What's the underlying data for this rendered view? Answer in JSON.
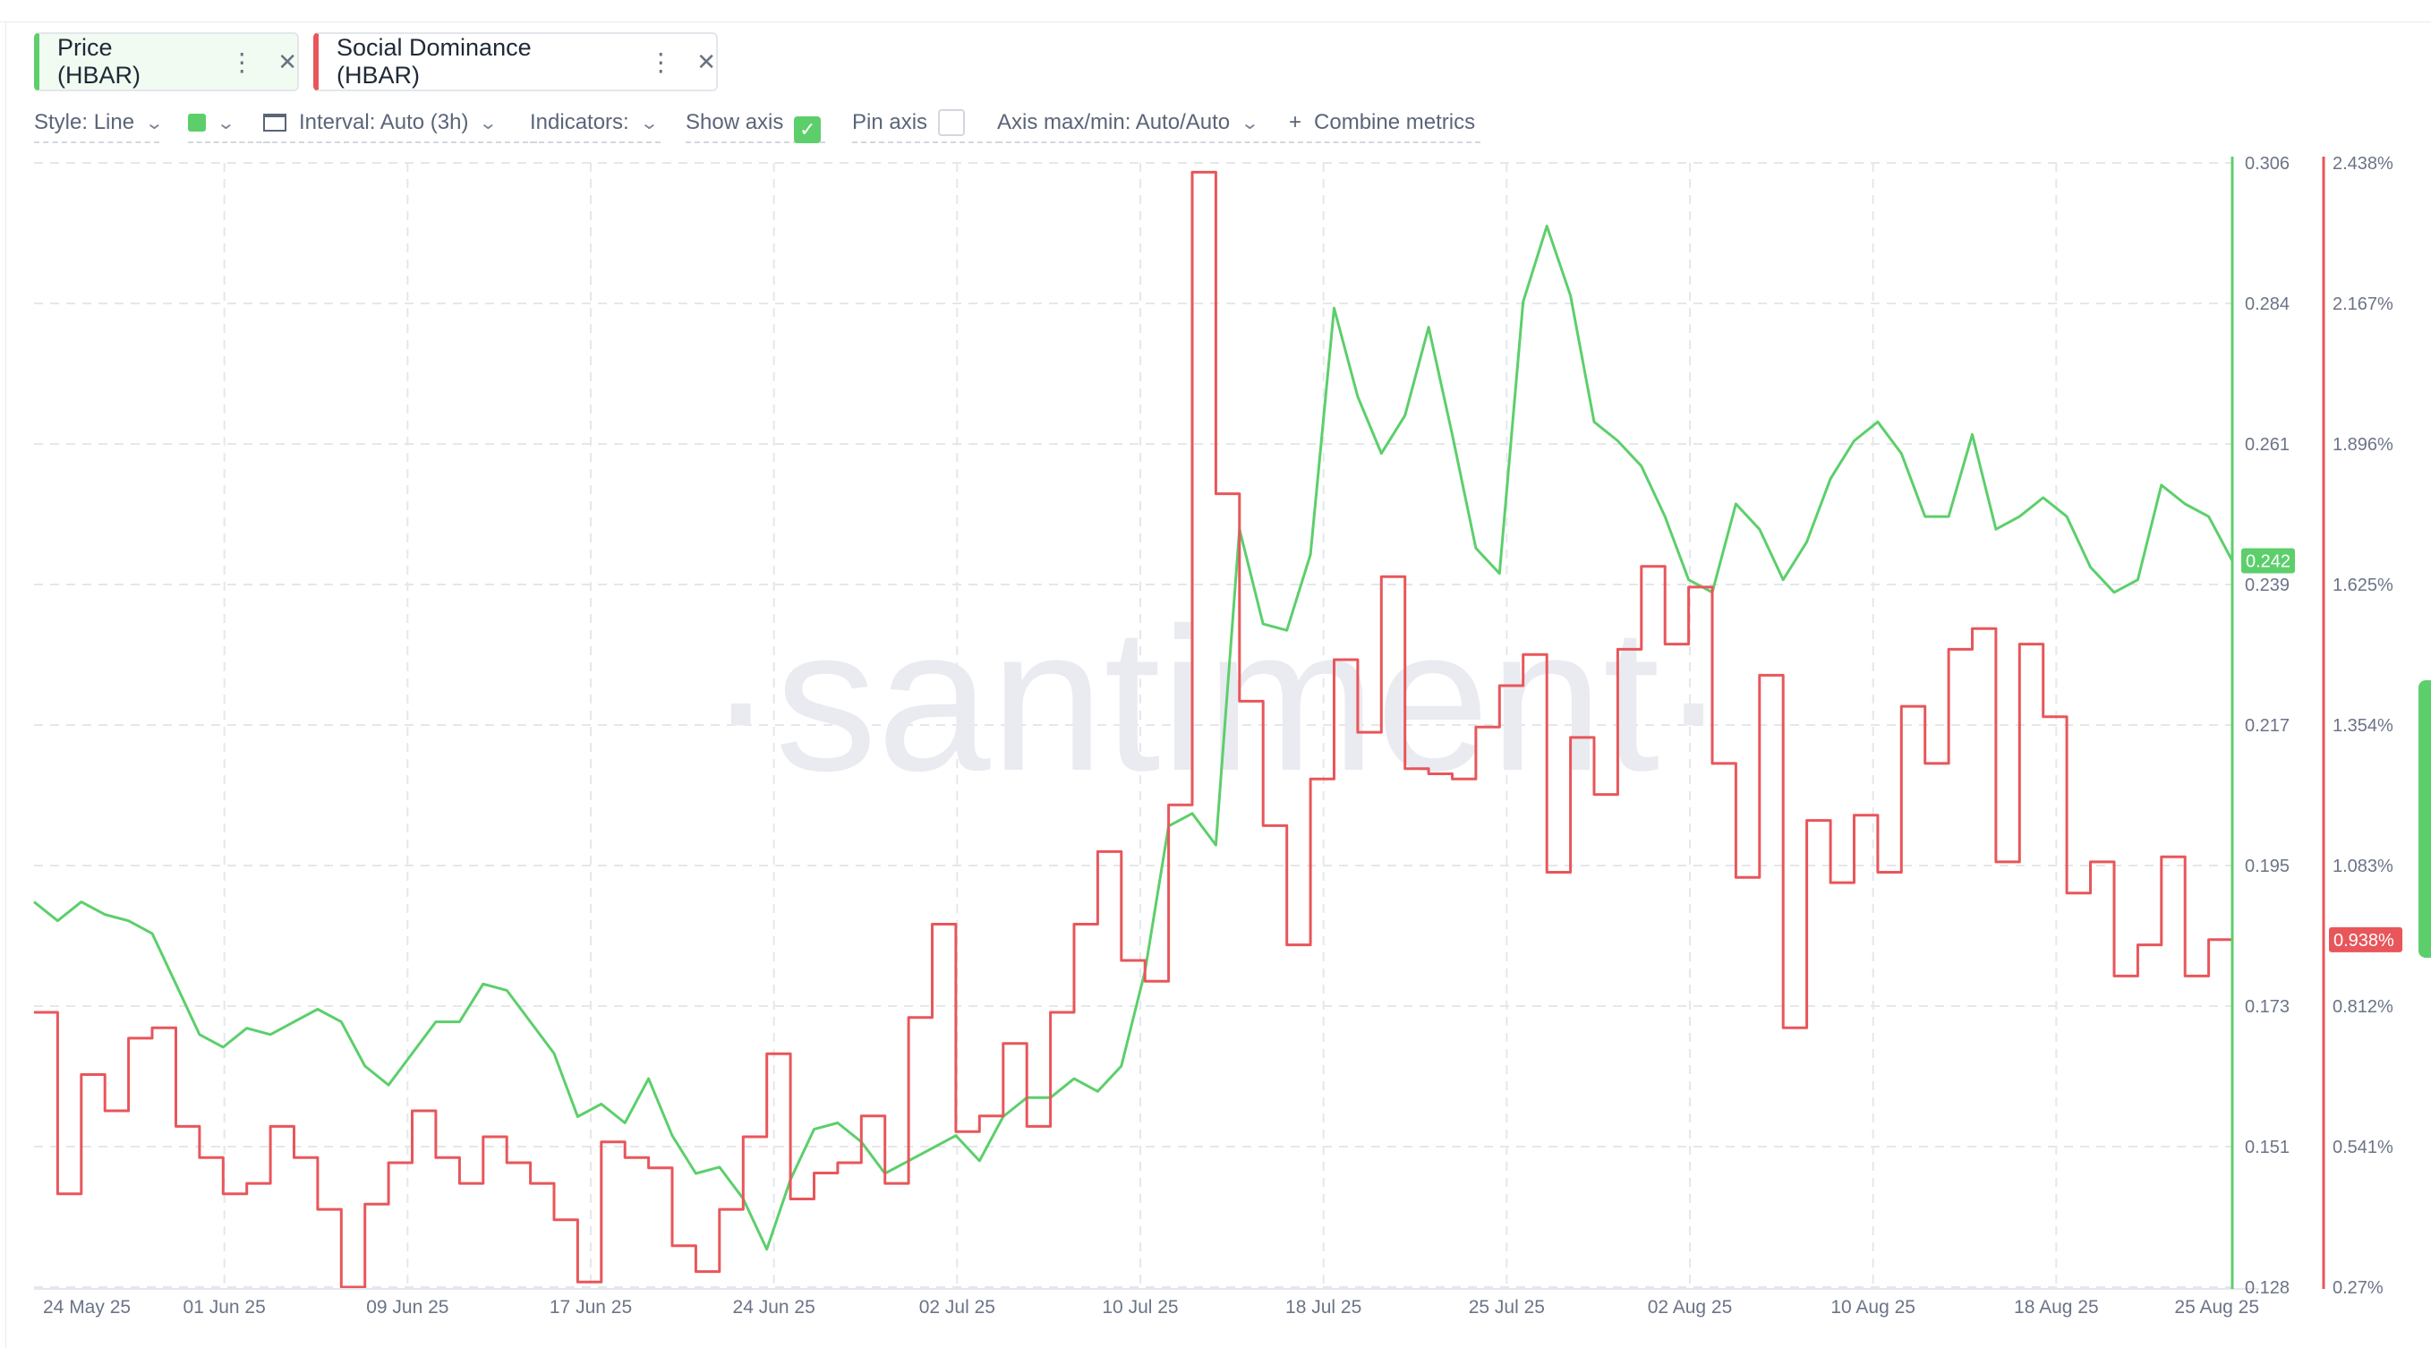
{
  "metrics": [
    {
      "label": "Price (HBAR)",
      "color": "#5ccf6b",
      "menu_icon": "more-vertical-icon",
      "close_icon": "close-icon"
    },
    {
      "label": "Social Dominance (HBAR)",
      "color": "#e8565a",
      "menu_icon": "more-vertical-icon",
      "close_icon": "close-icon"
    }
  ],
  "toolbar": {
    "style": "Style: Line",
    "interval": "Interval: Auto (3h)",
    "indicators": "Indicators:",
    "show_axis": "Show axis",
    "show_axis_checked": true,
    "pin_axis": "Pin axis",
    "pin_axis_checked": false,
    "axis_minmax": "Axis max/min: Auto/Auto",
    "combine": "Combine metrics"
  },
  "watermark": "·santiment·",
  "chart_data": {
    "type": "line",
    "x_ticks": [
      "24 May 25",
      "01 Jun 25",
      "09 Jun 25",
      "17 Jun 25",
      "24 Jun 25",
      "02 Jul 25",
      "10 Jul 25",
      "18 Jul 25",
      "25 Jul 25",
      "02 Aug 25",
      "10 Aug 25",
      "18 Aug 25",
      "25 Aug 25"
    ],
    "x_range": [
      "2025-05-24",
      "2025-08-25"
    ],
    "grid": true,
    "series": [
      {
        "name": "Price (HBAR)",
        "axis": "right-1",
        "color": "#5ccf6b",
        "current_value": "0.242",
        "y_ticks": [
          "0.306",
          "0.284",
          "0.261",
          "0.239",
          "0.217",
          "0.195",
          "0.173",
          "0.151",
          "0.128"
        ],
        "ylim": [
          0.128,
          0.306
        ],
        "points": [
          [
            "2025-05-24",
            0.189
          ],
          [
            "2025-05-25",
            0.186
          ],
          [
            "2025-05-26",
            0.189
          ],
          [
            "2025-05-27",
            0.187
          ],
          [
            "2025-05-28",
            0.186
          ],
          [
            "2025-05-29",
            0.184
          ],
          [
            "2025-05-30",
            0.176
          ],
          [
            "2025-05-31",
            0.168
          ],
          [
            "2025-06-01",
            0.166
          ],
          [
            "2025-06-02",
            0.169
          ],
          [
            "2025-06-03",
            0.168
          ],
          [
            "2025-06-04",
            0.17
          ],
          [
            "2025-06-05",
            0.172
          ],
          [
            "2025-06-06",
            0.17
          ],
          [
            "2025-06-07",
            0.163
          ],
          [
            "2025-06-08",
            0.16
          ],
          [
            "2025-06-09",
            0.165
          ],
          [
            "2025-06-10",
            0.17
          ],
          [
            "2025-06-11",
            0.17
          ],
          [
            "2025-06-12",
            0.176
          ],
          [
            "2025-06-13",
            0.175
          ],
          [
            "2025-06-14",
            0.17
          ],
          [
            "2025-06-15",
            0.165
          ],
          [
            "2025-06-16",
            0.155
          ],
          [
            "2025-06-17",
            0.157
          ],
          [
            "2025-06-18",
            0.154
          ],
          [
            "2025-06-19",
            0.161
          ],
          [
            "2025-06-20",
            0.152
          ],
          [
            "2025-06-21",
            0.146
          ],
          [
            "2025-06-22",
            0.147
          ],
          [
            "2025-06-23",
            0.142
          ],
          [
            "2025-06-24",
            0.134
          ],
          [
            "2025-06-25",
            0.145
          ],
          [
            "2025-06-26",
            0.153
          ],
          [
            "2025-06-27",
            0.154
          ],
          [
            "2025-06-28",
            0.151
          ],
          [
            "2025-06-29",
            0.146
          ],
          [
            "2025-06-30",
            0.148
          ],
          [
            "2025-07-01",
            0.15
          ],
          [
            "2025-07-02",
            0.152
          ],
          [
            "2025-07-03",
            0.148
          ],
          [
            "2025-07-04",
            0.155
          ],
          [
            "2025-07-05",
            0.158
          ],
          [
            "2025-07-06",
            0.158
          ],
          [
            "2025-07-07",
            0.161
          ],
          [
            "2025-07-08",
            0.159
          ],
          [
            "2025-07-09",
            0.163
          ],
          [
            "2025-07-10",
            0.178
          ],
          [
            "2025-07-11",
            0.201
          ],
          [
            "2025-07-12",
            0.203
          ],
          [
            "2025-07-13",
            0.198
          ],
          [
            "2025-07-14",
            0.248
          ],
          [
            "2025-07-15",
            0.233
          ],
          [
            "2025-07-16",
            0.232
          ],
          [
            "2025-07-17",
            0.244
          ],
          [
            "2025-07-18",
            0.283
          ],
          [
            "2025-07-19",
            0.269
          ],
          [
            "2025-07-20",
            0.26
          ],
          [
            "2025-07-21",
            0.266
          ],
          [
            "2025-07-22",
            0.28
          ],
          [
            "2025-07-23",
            0.263
          ],
          [
            "2025-07-24",
            0.245
          ],
          [
            "2025-07-25",
            0.241
          ],
          [
            "2025-07-26",
            0.284
          ],
          [
            "2025-07-27",
            0.296
          ],
          [
            "2025-07-28",
            0.285
          ],
          [
            "2025-07-29",
            0.265
          ],
          [
            "2025-07-30",
            0.262
          ],
          [
            "2025-07-31",
            0.258
          ],
          [
            "2025-08-01",
            0.25
          ],
          [
            "2025-08-02",
            0.24
          ],
          [
            "2025-08-03",
            0.238
          ],
          [
            "2025-08-04",
            0.252
          ],
          [
            "2025-08-05",
            0.248
          ],
          [
            "2025-08-06",
            0.24
          ],
          [
            "2025-08-07",
            0.246
          ],
          [
            "2025-08-08",
            0.256
          ],
          [
            "2025-08-09",
            0.262
          ],
          [
            "2025-08-10",
            0.265
          ],
          [
            "2025-08-11",
            0.26
          ],
          [
            "2025-08-12",
            0.25
          ],
          [
            "2025-08-13",
            0.25
          ],
          [
            "2025-08-14",
            0.263
          ],
          [
            "2025-08-15",
            0.248
          ],
          [
            "2025-08-16",
            0.25
          ],
          [
            "2025-08-17",
            0.253
          ],
          [
            "2025-08-18",
            0.25
          ],
          [
            "2025-08-19",
            0.242
          ],
          [
            "2025-08-20",
            0.238
          ],
          [
            "2025-08-21",
            0.24
          ],
          [
            "2025-08-22",
            0.255
          ],
          [
            "2025-08-23",
            0.252
          ],
          [
            "2025-08-24",
            0.25
          ],
          [
            "2025-08-25",
            0.243
          ]
        ]
      },
      {
        "name": "Social Dominance (HBAR)",
        "axis": "right-2",
        "color": "#e8565a",
        "current_value": "0.938%",
        "y_ticks": [
          "2.438%",
          "2.167%",
          "1.896%",
          "1.625%",
          "1.354%",
          "1.083%",
          "0.812%",
          "0.541%",
          "0.27%"
        ],
        "ylim": [
          0.27,
          2.438
        ],
        "points": [
          [
            "2025-05-24",
            0.8
          ],
          [
            "2025-05-25",
            0.45
          ],
          [
            "2025-05-26",
            0.68
          ],
          [
            "2025-05-27",
            0.61
          ],
          [
            "2025-05-28",
            0.75
          ],
          [
            "2025-05-29",
            0.77
          ],
          [
            "2025-05-30",
            0.58
          ],
          [
            "2025-05-31",
            0.52
          ],
          [
            "2025-06-01",
            0.45
          ],
          [
            "2025-06-02",
            0.47
          ],
          [
            "2025-06-03",
            0.58
          ],
          [
            "2025-06-04",
            0.52
          ],
          [
            "2025-06-05",
            0.42
          ],
          [
            "2025-06-06",
            0.27
          ],
          [
            "2025-06-07",
            0.43
          ],
          [
            "2025-06-08",
            0.51
          ],
          [
            "2025-06-09",
            0.61
          ],
          [
            "2025-06-10",
            0.52
          ],
          [
            "2025-06-11",
            0.47
          ],
          [
            "2025-06-12",
            0.56
          ],
          [
            "2025-06-13",
            0.51
          ],
          [
            "2025-06-14",
            0.47
          ],
          [
            "2025-06-15",
            0.4
          ],
          [
            "2025-06-16",
            0.28
          ],
          [
            "2025-06-17",
            0.55
          ],
          [
            "2025-06-18",
            0.52
          ],
          [
            "2025-06-19",
            0.5
          ],
          [
            "2025-06-20",
            0.35
          ],
          [
            "2025-06-21",
            0.3
          ],
          [
            "2025-06-22",
            0.42
          ],
          [
            "2025-06-23",
            0.56
          ],
          [
            "2025-06-24",
            0.72
          ],
          [
            "2025-06-25",
            0.44
          ],
          [
            "2025-06-26",
            0.49
          ],
          [
            "2025-06-27",
            0.51
          ],
          [
            "2025-06-28",
            0.6
          ],
          [
            "2025-06-29",
            0.47
          ],
          [
            "2025-06-30",
            0.79
          ],
          [
            "2025-07-01",
            0.97
          ],
          [
            "2025-07-02",
            0.57
          ],
          [
            "2025-07-03",
            0.6
          ],
          [
            "2025-07-04",
            0.74
          ],
          [
            "2025-07-05",
            0.58
          ],
          [
            "2025-07-06",
            0.8
          ],
          [
            "2025-07-07",
            0.97
          ],
          [
            "2025-07-08",
            1.11
          ],
          [
            "2025-07-09",
            0.9
          ],
          [
            "2025-07-10",
            0.86
          ],
          [
            "2025-07-11",
            1.2
          ],
          [
            "2025-07-12",
            2.42
          ],
          [
            "2025-07-13",
            1.8
          ],
          [
            "2025-07-14",
            1.4
          ],
          [
            "2025-07-15",
            1.16
          ],
          [
            "2025-07-16",
            0.93
          ],
          [
            "2025-07-17",
            1.25
          ],
          [
            "2025-07-18",
            1.48
          ],
          [
            "2025-07-19",
            1.34
          ],
          [
            "2025-07-20",
            1.64
          ],
          [
            "2025-07-21",
            1.27
          ],
          [
            "2025-07-22",
            1.26
          ],
          [
            "2025-07-23",
            1.25
          ],
          [
            "2025-07-24",
            1.35
          ],
          [
            "2025-07-25",
            1.43
          ],
          [
            "2025-07-26",
            1.49
          ],
          [
            "2025-07-27",
            1.07
          ],
          [
            "2025-07-28",
            1.33
          ],
          [
            "2025-07-29",
            1.22
          ],
          [
            "2025-07-30",
            1.5
          ],
          [
            "2025-07-31",
            1.66
          ],
          [
            "2025-08-01",
            1.51
          ],
          [
            "2025-08-02",
            1.62
          ],
          [
            "2025-08-03",
            1.28
          ],
          [
            "2025-08-04",
            1.06
          ],
          [
            "2025-08-05",
            1.45
          ],
          [
            "2025-08-06",
            0.77
          ],
          [
            "2025-08-07",
            1.17
          ],
          [
            "2025-08-08",
            1.05
          ],
          [
            "2025-08-09",
            1.18
          ],
          [
            "2025-08-10",
            1.07
          ],
          [
            "2025-08-11",
            1.39
          ],
          [
            "2025-08-12",
            1.28
          ],
          [
            "2025-08-13",
            1.5
          ],
          [
            "2025-08-14",
            1.54
          ],
          [
            "2025-08-15",
            1.09
          ],
          [
            "2025-08-16",
            1.51
          ],
          [
            "2025-08-17",
            1.37
          ],
          [
            "2025-08-18",
            1.03
          ],
          [
            "2025-08-19",
            1.09
          ],
          [
            "2025-08-20",
            0.87
          ],
          [
            "2025-08-21",
            0.93
          ],
          [
            "2025-08-22",
            1.1
          ],
          [
            "2025-08-23",
            0.87
          ],
          [
            "2025-08-24",
            0.94
          ],
          [
            "2025-08-25",
            0.94
          ]
        ]
      }
    ]
  }
}
